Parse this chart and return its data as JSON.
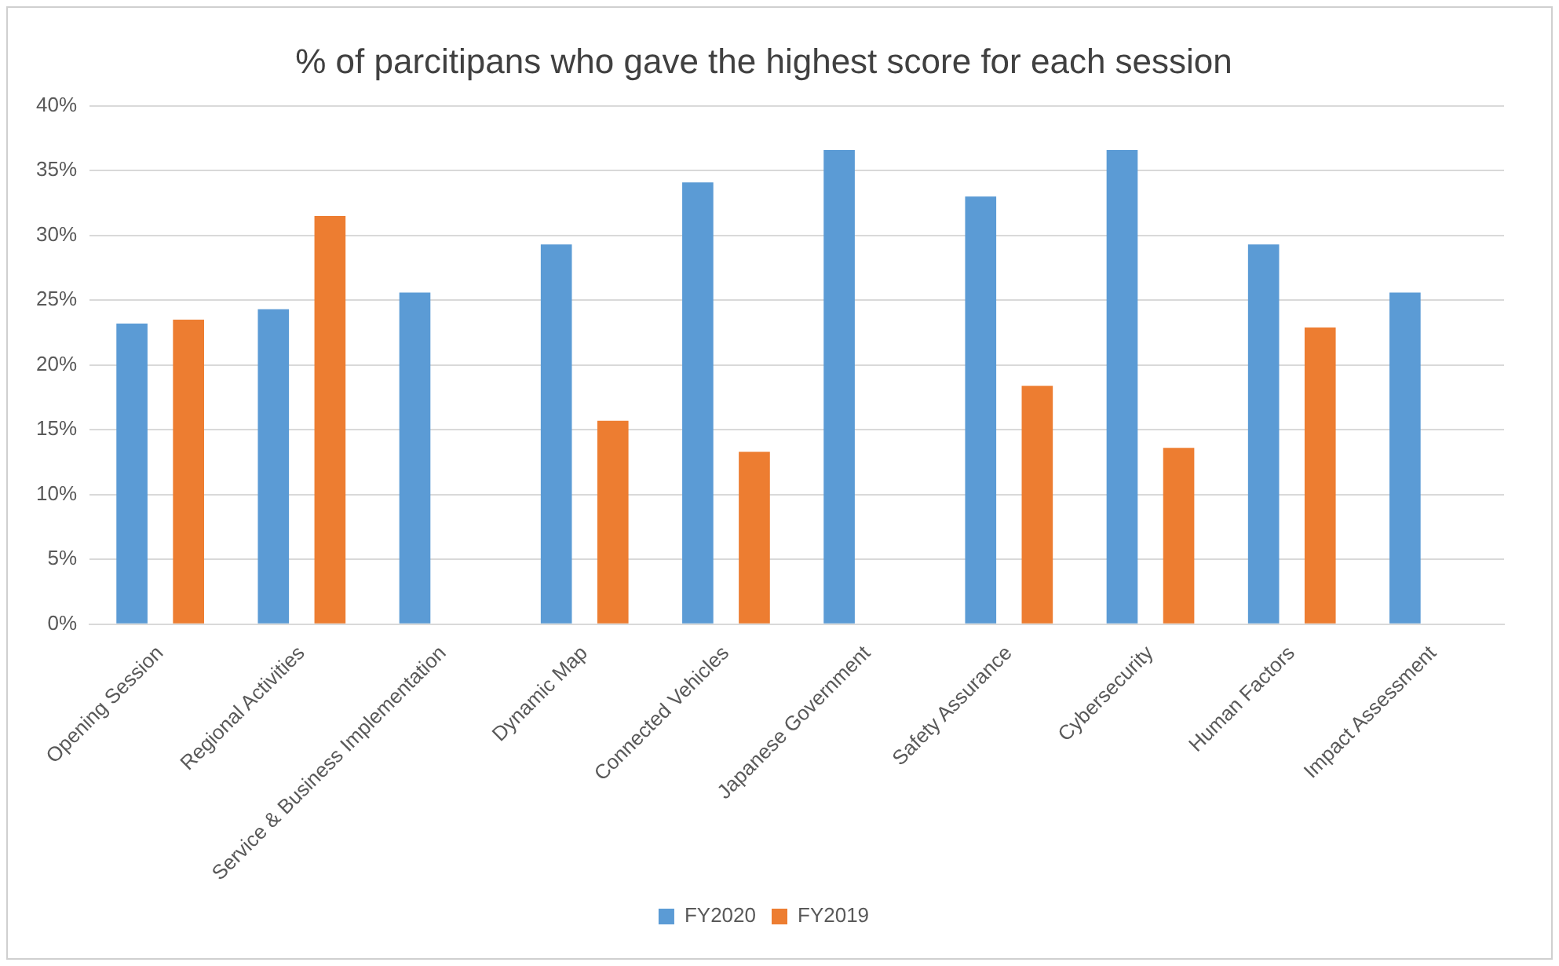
{
  "chart_data": {
    "type": "bar",
    "title": "% of parcitipans who gave the highest score for each session",
    "categories": [
      "Opening Session",
      "Regional Activities",
      "Service & Business Implementation",
      "Dynamic Map",
      "Connected Vehicles",
      "Japanese Government",
      "Safety Assurance",
      "Cybersecurity",
      "Human Factors",
      "Impact Assessment"
    ],
    "series": [
      {
        "name": "FY2020",
        "color": "#5b9bd5",
        "values": [
          23.2,
          24.3,
          25.6,
          29.3,
          34.1,
          36.6,
          33.0,
          36.6,
          29.3,
          25.6
        ]
      },
      {
        "name": "FY2019",
        "color": "#ed7d31",
        "values": [
          23.5,
          31.5,
          null,
          15.7,
          13.3,
          null,
          18.4,
          13.6,
          22.9,
          null
        ]
      }
    ],
    "ylim": [
      0,
      40
    ],
    "yticks": [
      {
        "value": 0,
        "label": "0%"
      },
      {
        "value": 5,
        "label": "5%"
      },
      {
        "value": 10,
        "label": "10%"
      },
      {
        "value": 15,
        "label": "15%"
      },
      {
        "value": 20,
        "label": "20%"
      },
      {
        "value": 25,
        "label": "25%"
      },
      {
        "value": 30,
        "label": "30%"
      },
      {
        "value": 35,
        "label": "35%"
      },
      {
        "value": 40,
        "label": "40%"
      }
    ],
    "grid": "y",
    "legend": "bottom"
  }
}
